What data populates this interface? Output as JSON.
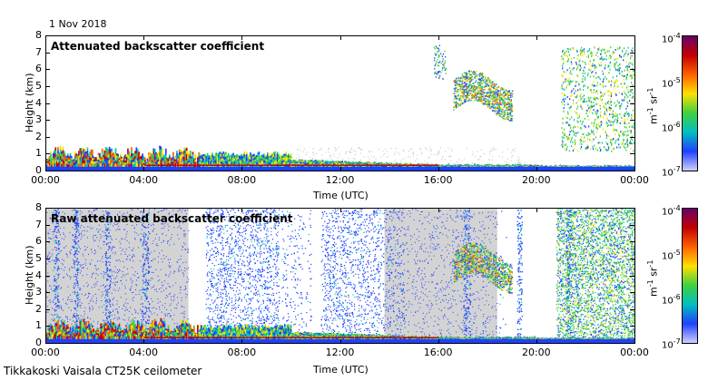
{
  "date_label": "1 Nov 2018",
  "footer": "Tikkakoski Vaisala CT25K ceilometer",
  "colorbar": {
    "unit_base": "m",
    "unit_exp1": "-1",
    "unit_mid": " sr",
    "unit_exp2": "-1",
    "tick_labels": [
      {
        "base": "10",
        "exp": "-4"
      },
      {
        "base": "10",
        "exp": "-5"
      },
      {
        "base": "10",
        "exp": "-6"
      },
      {
        "base": "10",
        "exp": "-7"
      }
    ],
    "colors": [
      "#6a006a",
      "#c40000",
      "#ff6000",
      "#ffe000",
      "#40d040",
      "#00c0c0",
      "#2040ff",
      "#d0d0ff"
    ]
  },
  "chart_data": [
    {
      "type": "heatmap",
      "title": "Attenuated backscatter coefficient",
      "xlabel": "Time (UTC)",
      "ylabel": "Height (km)",
      "xlim": [
        "00:00",
        "00:00"
      ],
      "ylim": [
        0,
        8
      ],
      "x_ticks": [
        "00:00",
        "04:00",
        "08:00",
        "12:00",
        "16:00",
        "20:00",
        "00:00"
      ],
      "y_ticks": [
        "0",
        "1",
        "2",
        "3",
        "4",
        "5",
        "6",
        "7",
        "8"
      ],
      "color_scale": "log",
      "color_range": [
        1e-07,
        0.0001
      ]
    },
    {
      "type": "heatmap",
      "title": "Raw attenuated backscatter coefficient",
      "xlabel": "Time (UTC)",
      "ylabel": "Height (km)",
      "xlim": [
        "00:00",
        "00:00"
      ],
      "ylim": [
        0,
        8
      ],
      "x_ticks": [
        "00:00",
        "04:00",
        "08:00",
        "12:00",
        "16:00",
        "20:00",
        "00:00"
      ],
      "y_ticks": [
        "0",
        "1",
        "2",
        "3",
        "4",
        "5",
        "6",
        "7",
        "8"
      ],
      "color_scale": "log",
      "color_range": [
        1e-07,
        0.0001
      ]
    }
  ]
}
